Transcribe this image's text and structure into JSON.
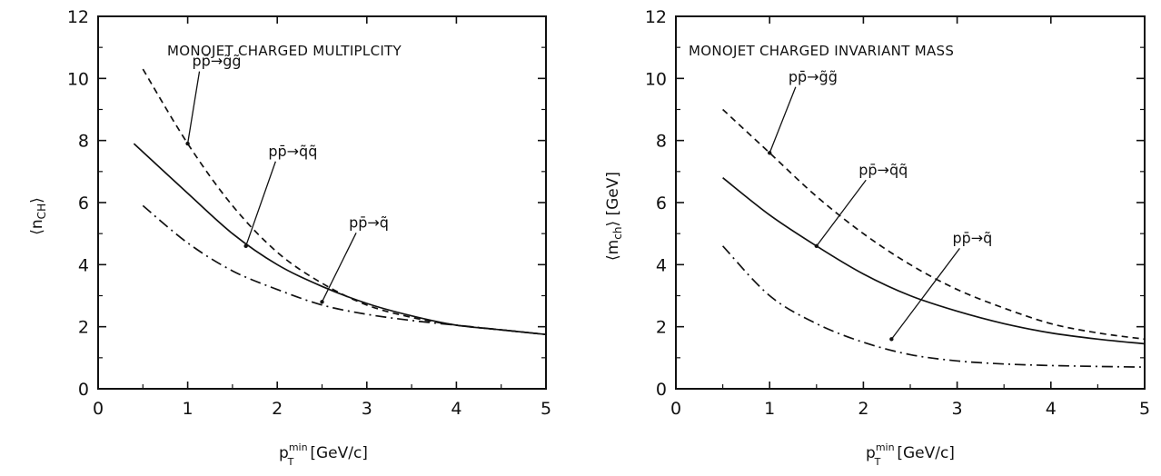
{
  "chart_data": [
    {
      "type": "line",
      "title": "MONOJET CHARGED MULTIPLCITY",
      "xlabel": "p_T^min [GeV/c]",
      "xlabel_base": "p",
      "xlabel_sup": "min",
      "xlabel_sub": "T",
      "xlabel_unit": "[GeV/c]",
      "ylabel": "<n_CH>",
      "ylabel_main": "⟨n",
      "ylabel_sub": "CH",
      "ylabel_close": "⟩",
      "xlim": [
        0,
        5
      ],
      "ylim": [
        0,
        12
      ],
      "xticks": [
        "0",
        "1",
        "2",
        "3",
        "4",
        "5"
      ],
      "yticks": [
        "0",
        "2",
        "4",
        "6",
        "8",
        "10",
        "12"
      ],
      "grid": false,
      "series": [
        {
          "name": "pp̄ → g̃g̃",
          "style": "dashed",
          "x": [
            0.5,
            1.0,
            1.5,
            2.0,
            2.5,
            3.0,
            3.5,
            4.0,
            4.5,
            5.0
          ],
          "y": [
            10.3,
            7.9,
            5.9,
            4.4,
            3.4,
            2.7,
            2.3,
            2.05,
            1.9,
            1.75
          ]
        },
        {
          "name": "pp̄ → q̃q̃",
          "style": "solid",
          "x": [
            0.4,
            1.0,
            1.5,
            2.0,
            2.5,
            3.0,
            3.5,
            4.0,
            4.5,
            5.0
          ],
          "y": [
            7.9,
            6.3,
            5.0,
            4.0,
            3.3,
            2.75,
            2.35,
            2.05,
            1.9,
            1.75
          ]
        },
        {
          "name": "pp̄ → q̃",
          "style": "dashdot",
          "x": [
            0.5,
            1.0,
            1.5,
            2.0,
            2.5,
            3.0,
            3.5,
            4.0,
            4.5,
            5.0
          ],
          "y": [
            5.9,
            4.7,
            3.8,
            3.2,
            2.7,
            2.4,
            2.2,
            2.05,
            1.9,
            1.75
          ]
        }
      ],
      "annotations": [
        {
          "text": "pp̄→g̃g̃",
          "points_to": "pp̄ → g̃g̃",
          "tx": 1.05,
          "ty": 10.4,
          "ax": 1.0,
          "ay": 7.9
        },
        {
          "text": "pp̄→q̃q̃",
          "points_to": "pp̄ → q̃q̃",
          "tx": 1.9,
          "ty": 7.5,
          "ax": 1.65,
          "ay": 4.6
        },
        {
          "text": "pp̄→q̃",
          "points_to": "pp̄ → q̃",
          "tx": 2.8,
          "ty": 5.2,
          "ax": 2.5,
          "ay": 2.8
        }
      ]
    },
    {
      "type": "line",
      "title": "MONOJET CHARGED INVARIANT MASS",
      "xlabel": "p_T^min [GeV/c]",
      "xlabel_base": "p",
      "xlabel_sup": "min",
      "xlabel_sub": "T",
      "xlabel_unit": "[GeV/c]",
      "ylabel": "<m_ch> [GeV]",
      "ylabel_main": "⟨m",
      "ylabel_sub": "ch",
      "ylabel_close": "⟩ [GeV]",
      "xlim": [
        0,
        5
      ],
      "ylim": [
        0,
        12
      ],
      "xticks": [
        "0",
        "1",
        "2",
        "3",
        "4",
        "5"
      ],
      "yticks": [
        "0",
        "2",
        "4",
        "6",
        "8",
        "10",
        "12"
      ],
      "grid": false,
      "series": [
        {
          "name": "pp̄ → g̃g̃",
          "style": "dashed",
          "x": [
            0.5,
            1.0,
            1.5,
            2.0,
            2.5,
            3.0,
            3.5,
            4.0,
            4.5,
            5.0
          ],
          "y": [
            9.0,
            7.6,
            6.2,
            5.0,
            4.0,
            3.2,
            2.6,
            2.1,
            1.8,
            1.6
          ]
        },
        {
          "name": "pp̄ → q̃q̃",
          "style": "solid",
          "x": [
            0.5,
            1.0,
            1.5,
            2.0,
            2.5,
            3.0,
            3.5,
            4.0,
            4.5,
            5.0
          ],
          "y": [
            6.8,
            5.6,
            4.6,
            3.7,
            3.0,
            2.5,
            2.1,
            1.8,
            1.6,
            1.45
          ]
        },
        {
          "name": "pp̄ → q̃",
          "style": "dashdot",
          "x": [
            0.5,
            1.0,
            1.5,
            2.0,
            2.5,
            3.0,
            3.5,
            4.0,
            4.5,
            5.0
          ],
          "y": [
            4.6,
            3.0,
            2.1,
            1.5,
            1.1,
            0.9,
            0.8,
            0.75,
            0.72,
            0.7
          ]
        }
      ],
      "annotations": [
        {
          "text": "pp̄→g̃g̃",
          "points_to": "pp̄ → g̃g̃",
          "tx": 1.2,
          "ty": 9.9,
          "ax": 1.0,
          "ay": 7.6
        },
        {
          "text": "pp̄→q̃q̃",
          "points_to": "pp̄ → q̃q̃",
          "tx": 1.95,
          "ty": 6.9,
          "ax": 1.5,
          "ay": 4.6
        },
        {
          "text": "pp̄→q̃",
          "points_to": "pp̄ → q̃",
          "tx": 2.95,
          "ty": 4.7,
          "ax": 2.3,
          "ay": 1.6
        }
      ]
    }
  ]
}
